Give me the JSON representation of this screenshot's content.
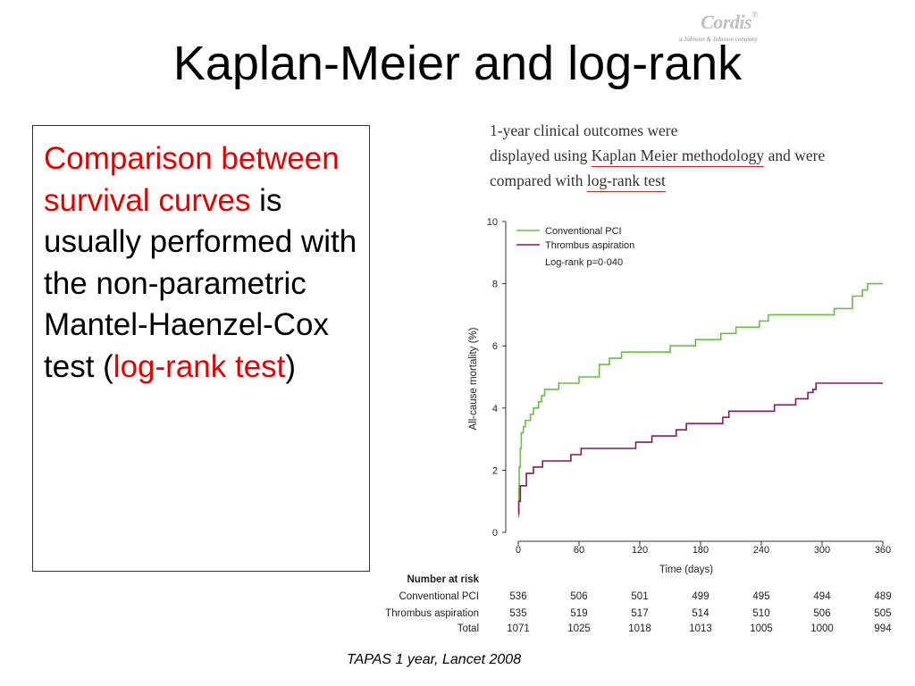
{
  "slide": {
    "title": "Kaplan-Meier and log-rank",
    "logo": {
      "brand": "Cordis",
      "mark": "®",
      "tagline": "a Johnson & Johnson company"
    },
    "box_text": {
      "p1": "Comparison between survival curves",
      "p2": " is usually performed with the non-parametric Mantel-Haenzel-Cox test (",
      "p3": "log-rank test",
      "p4": ")"
    },
    "excerpt": {
      "line1": "1-year  clinical  outcomes  were",
      "line2_pre": "displayed  using  ",
      "line2_u": "Kaplan  Meier  methodology",
      "line2_post": "  and  were",
      "line3_pre": "compared  with  ",
      "line3_u": "log-rank  test"
    },
    "citation": "TAPAS 1 year,  Lancet 2008"
  },
  "chart_data": {
    "type": "line",
    "ylabel": "All-cause mortality (%)",
    "xlabel": "Time (days)",
    "ylim": [
      0,
      10
    ],
    "xlim": [
      0,
      360
    ],
    "yticks": [
      0,
      2,
      4,
      6,
      8,
      10
    ],
    "xticks": [
      0,
      60,
      120,
      180,
      240,
      300,
      360
    ],
    "legend": {
      "placement": "top-left",
      "entries": [
        "Conventional PCI",
        "Thrombus aspiration"
      ],
      "note": "Log-rank p=0·040"
    },
    "series": [
      {
        "name": "Conventional PCI",
        "color": "#6abf45",
        "points": [
          [
            0,
            0.5
          ],
          [
            0.5,
            1.4
          ],
          [
            1,
            2.1
          ],
          [
            2,
            2.7
          ],
          [
            3,
            3.2
          ],
          [
            5,
            3.4
          ],
          [
            7,
            3.6
          ],
          [
            12,
            3.8
          ],
          [
            15,
            4.0
          ],
          [
            20,
            4.2
          ],
          [
            23,
            4.4
          ],
          [
            26,
            4.6
          ],
          [
            40,
            4.8
          ],
          [
            60,
            5.0
          ],
          [
            80,
            5.4
          ],
          [
            90,
            5.6
          ],
          [
            102,
            5.8
          ],
          [
            150,
            6.0
          ],
          [
            175,
            6.2
          ],
          [
            200,
            6.4
          ],
          [
            215,
            6.6
          ],
          [
            238,
            6.8
          ],
          [
            247,
            7.0
          ],
          [
            312,
            7.2
          ],
          [
            330,
            7.6
          ],
          [
            340,
            7.8
          ],
          [
            345,
            8.0
          ],
          [
            360,
            8.0
          ]
        ]
      },
      {
        "name": "Thrombus aspiration",
        "color": "#8b1a5c",
        "points": [
          [
            0,
            0.6
          ],
          [
            0.5,
            1.0
          ],
          [
            2,
            1.5
          ],
          [
            8,
            1.9
          ],
          [
            15,
            2.1
          ],
          [
            24,
            2.3
          ],
          [
            52,
            2.5
          ],
          [
            62,
            2.7
          ],
          [
            116,
            2.9
          ],
          [
            132,
            3.1
          ],
          [
            156,
            3.3
          ],
          [
            166,
            3.5
          ],
          [
            202,
            3.7
          ],
          [
            208,
            3.9
          ],
          [
            253,
            4.1
          ],
          [
            274,
            4.3
          ],
          [
            286,
            4.5
          ],
          [
            291,
            4.6
          ],
          [
            294,
            4.8
          ],
          [
            360,
            4.8
          ]
        ]
      }
    ],
    "risk_table": {
      "header": "Number at risk",
      "rows": [
        {
          "label": "Conventional PCI",
          "values": [
            536,
            506,
            501,
            499,
            495,
            494,
            489
          ]
        },
        {
          "label": "Thrombus aspiration",
          "values": [
            535,
            519,
            517,
            514,
            510,
            506,
            505
          ]
        },
        {
          "label": "Total",
          "values": [
            1071,
            1025,
            1018,
            1013,
            1005,
            1000,
            994
          ]
        }
      ]
    }
  }
}
